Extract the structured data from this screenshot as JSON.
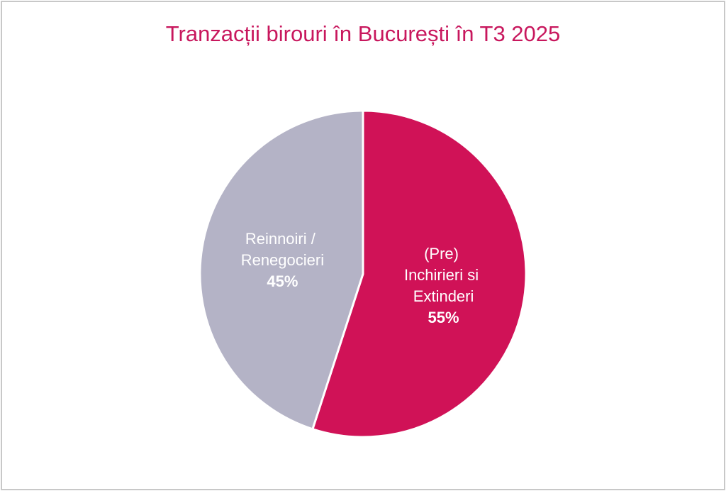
{
  "chart_data": {
    "type": "pie",
    "title": "Tranzacții birouri în București în T3 2025",
    "categories": [
      "(Pre) Inchirieri si Extinderi",
      "Reinnoiri / Renegocieri"
    ],
    "values": [
      55,
      45
    ],
    "value_labels": [
      "55%",
      "45%"
    ],
    "colors": [
      "#d01257",
      "#b4b3c6"
    ]
  }
}
